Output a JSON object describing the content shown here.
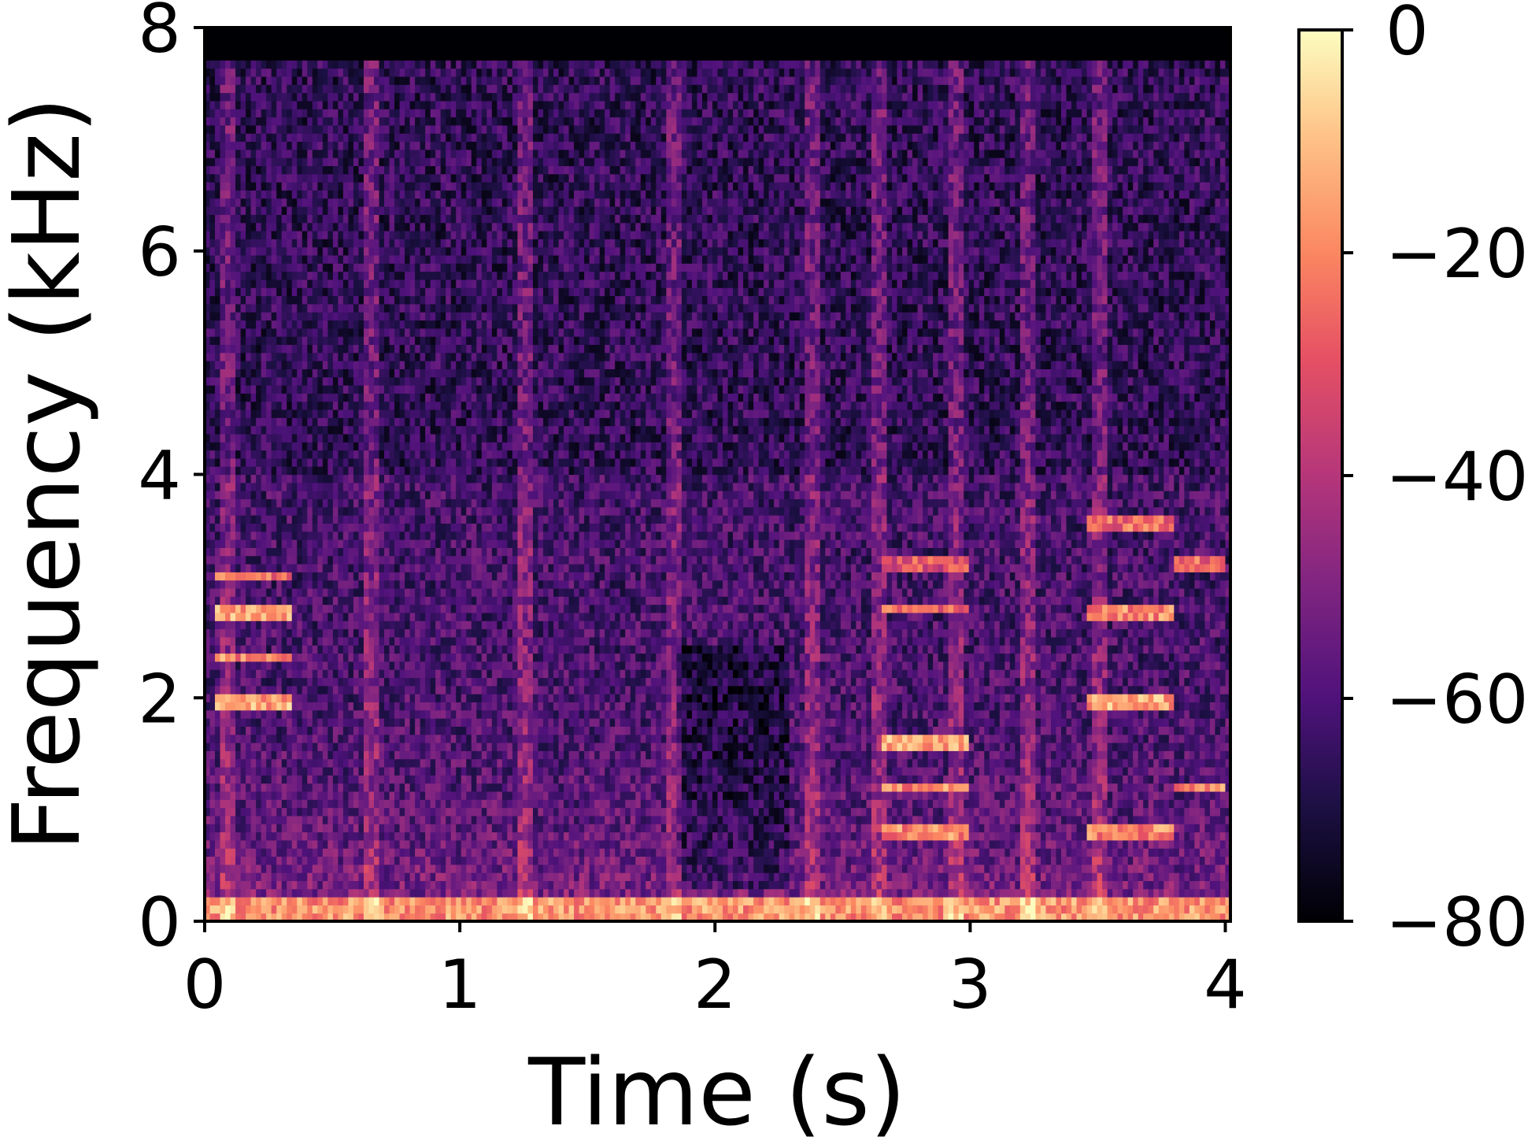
{
  "chart_data": {
    "type": "heatmap",
    "title": "",
    "xlabel": "Time (s)",
    "ylabel": "Frequency (kHz)",
    "xlim": [
      0,
      4.02
    ],
    "ylim": [
      0,
      8
    ],
    "x_ticks": [
      0,
      1,
      2,
      3,
      4
    ],
    "x_tick_labels": [
      "0",
      "1",
      "2",
      "3",
      "4"
    ],
    "y_ticks": [
      0,
      2,
      4,
      6,
      8
    ],
    "y_tick_labels": [
      "0",
      "2",
      "4",
      "6",
      "8"
    ],
    "colorbar": {
      "label": "",
      "colormap": "magma",
      "range": [
        -80,
        0
      ],
      "ticks": [
        0,
        -20,
        -40,
        -60,
        -80
      ],
      "tick_labels": [
        "0",
        "−20",
        "−40",
        "−60",
        "−80"
      ]
    },
    "content_cutoff_khz": 7.7,
    "onsets_s": [
      0.07,
      0.63,
      1.22,
      1.8,
      2.35,
      2.62,
      2.92,
      3.2,
      3.48
    ],
    "harmonic_tracks": [
      {
        "t_start": 0.05,
        "t_end": 0.35,
        "freq_khz": 2.75,
        "level_db": -15
      },
      {
        "t_start": 0.05,
        "t_end": 0.35,
        "freq_khz": 2.35,
        "level_db": -20
      },
      {
        "t_start": 0.05,
        "t_end": 0.35,
        "freq_khz": 1.98,
        "level_db": -15
      },
      {
        "t_start": 0.05,
        "t_end": 0.35,
        "freq_khz": 3.1,
        "level_db": -25
      },
      {
        "t_start": 2.65,
        "t_end": 3.0,
        "freq_khz": 1.6,
        "level_db": -15
      },
      {
        "t_start": 2.65,
        "t_end": 3.0,
        "freq_khz": 1.2,
        "level_db": -20
      },
      {
        "t_start": 2.65,
        "t_end": 3.0,
        "freq_khz": 0.78,
        "level_db": -20
      },
      {
        "t_start": 2.65,
        "t_end": 3.0,
        "freq_khz": 2.8,
        "level_db": -25
      },
      {
        "t_start": 2.65,
        "t_end": 3.0,
        "freq_khz": 3.2,
        "level_db": -30
      },
      {
        "t_start": 3.45,
        "t_end": 3.8,
        "freq_khz": 1.98,
        "level_db": -15
      },
      {
        "t_start": 3.45,
        "t_end": 3.8,
        "freq_khz": 2.75,
        "level_db": -20
      },
      {
        "t_start": 3.45,
        "t_end": 3.8,
        "freq_khz": 3.55,
        "level_db": -25
      },
      {
        "t_start": 3.45,
        "t_end": 3.8,
        "freq_khz": 0.78,
        "level_db": -20
      },
      {
        "t_start": 3.8,
        "t_end": 4.0,
        "freq_khz": 1.2,
        "level_db": -20
      },
      {
        "t_start": 3.8,
        "t_end": 4.0,
        "freq_khz": 3.2,
        "level_db": -25
      }
    ],
    "grid": false,
    "legend": "none"
  }
}
